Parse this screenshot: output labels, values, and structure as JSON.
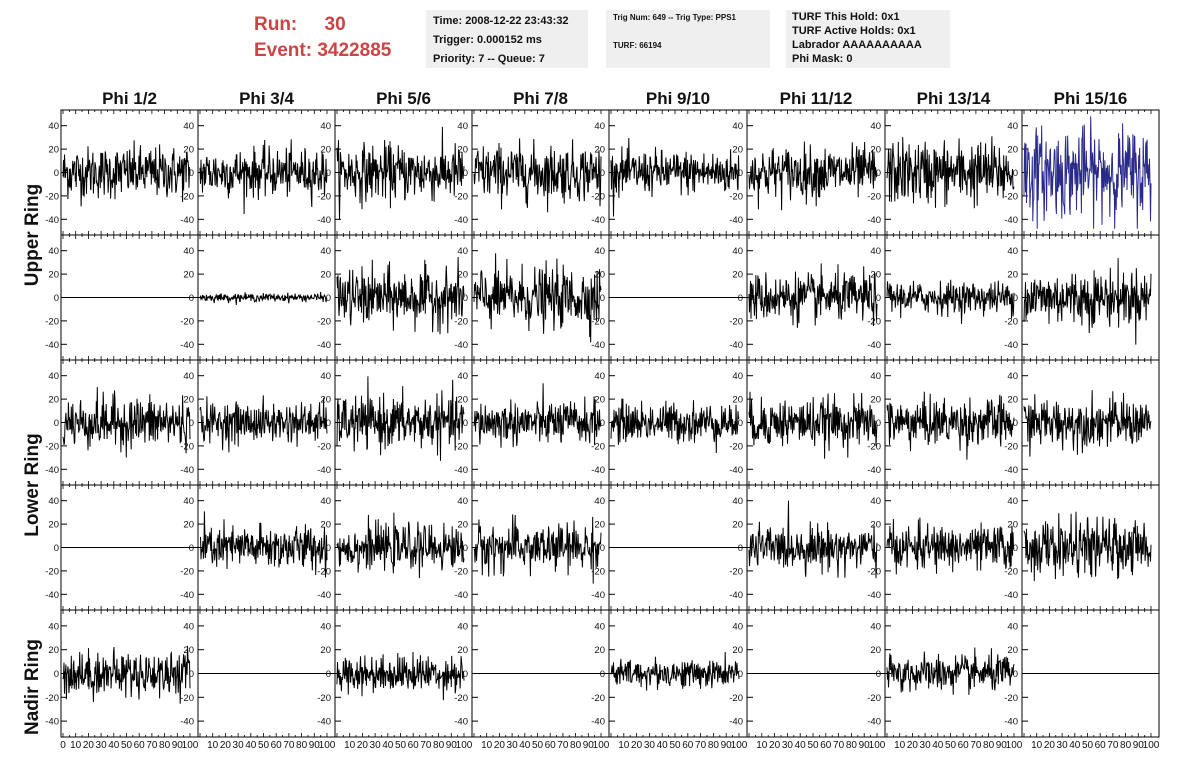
{
  "header": {
    "run_label": "Run:",
    "run_value": "30",
    "event_label": "Event:",
    "event_value": "3422885"
  },
  "info": {
    "time": "Time: 2008-12-22 23:43:32",
    "trigger": "Trigger: 0.000152 ms",
    "priority": "Priority: 7 -- Queue: 7",
    "trig_num": "Trig Num: 649 -- Trig Type: PPS1",
    "turf": "TURF: 66194",
    "turf_this_hold": "TURF This Hold: 0x1",
    "turf_active_holds": "TURF Active Holds: 0x1",
    "labrador": "Labrador AAAAAAAAAA",
    "phi_mask": "Phi Mask: 0"
  },
  "colors": {
    "trace": "#000000",
    "highlight_trace": "#2a2a8c",
    "header_red": "#cc4444",
    "info_bg": "#efefef"
  },
  "chart_data": {
    "type": "line",
    "columns": [
      "Phi 1/2",
      "Phi 3/4",
      "Phi 5/6",
      "Phi 7/8",
      "Phi 9/10",
      "Phi 11/12",
      "Phi 13/14",
      "Phi 15/16"
    ],
    "ring_labels": [
      "Upper Ring",
      "Lower Ring",
      "Nadir Ring"
    ],
    "ylim": [
      -50,
      50
    ],
    "xlim": [
      0,
      100
    ],
    "ytick_values": [
      -40,
      -20,
      0,
      20,
      40
    ],
    "ytick_labels": [
      "-40",
      "-20",
      "0",
      "20",
      "40"
    ],
    "xtick_values": [
      0,
      10,
      20,
      30,
      40,
      50,
      60,
      70,
      80,
      90,
      100
    ],
    "xtick_labels": [
      "0",
      "10",
      "20",
      "30",
      "40",
      "50",
      "60",
      "70",
      "80",
      "90",
      "100"
    ],
    "samples_per_trace": 260,
    "trace_amplitude_rows": [
      [
        13,
        12,
        14,
        14,
        11,
        13,
        16,
        22
      ],
      [
        0,
        2,
        14,
        15,
        0,
        12,
        8,
        14
      ],
      [
        13,
        10,
        13,
        11,
        10,
        12,
        12,
        12
      ],
      [
        0,
        11,
        11,
        12,
        0,
        11,
        11,
        14
      ],
      [
        11,
        0,
        9,
        0,
        7,
        0,
        9,
        0
      ]
    ],
    "highlight_panel": {
      "row": 0,
      "col": 7
    }
  }
}
